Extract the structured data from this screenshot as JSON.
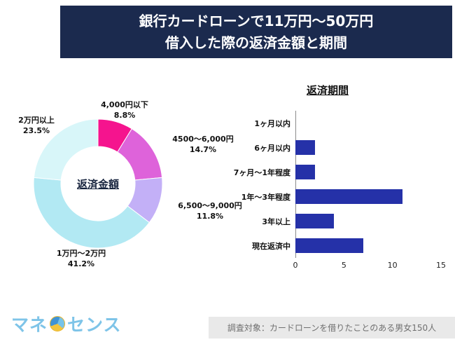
{
  "header": {
    "title_line1": "銀行カードローンで11万円〜50万円",
    "title_line2": "借入した際の返済金額と期間"
  },
  "chart_data": [
    {
      "type": "pie",
      "subtype": "donut",
      "title": "返済金額",
      "labels": [
        "4,000円以下",
        "4500〜6,000円",
        "6,500〜9,000円",
        "1万円〜2万円",
        "2万円以上"
      ],
      "values": [
        8.8,
        14.7,
        11.8,
        41.2,
        23.5
      ],
      "value_labels": [
        "8.8%",
        "14.7%",
        "11.8%",
        "41.2%",
        "23.5%"
      ],
      "colors": [
        "#f5148e",
        "#de63da",
        "#c3b0f7",
        "#b2e9f3",
        "#d8f6f9"
      ],
      "start_angle": 0,
      "direction": "clockwise",
      "legend_position": "outside-labels"
    },
    {
      "type": "bar",
      "orientation": "horizontal",
      "title": "返済期間",
      "categories": [
        "1ヶ月以内",
        "6ヶ月以内",
        "7ヶ月〜1年程度",
        "1年〜3年程度",
        "3年以上",
        "現在返済中"
      ],
      "values": [
        0,
        2,
        2,
        11,
        4,
        7
      ],
      "xlim": [
        0,
        15
      ],
      "xticks": [
        "0",
        "5",
        "10",
        "15"
      ],
      "bar_color": "#2531a8",
      "grid": false,
      "legend_position": "none"
    }
  ],
  "footer": {
    "logo_prefix": "マネ",
    "logo_suffix": "センス",
    "note": "調査対象：カードローンを借りたことのある男女150人"
  },
  "colors": {
    "header_bg": "#1b2a4e",
    "bar": "#2531a8",
    "note_bg": "#e9e9e9",
    "logo_blue": "#7ec4e8"
  }
}
